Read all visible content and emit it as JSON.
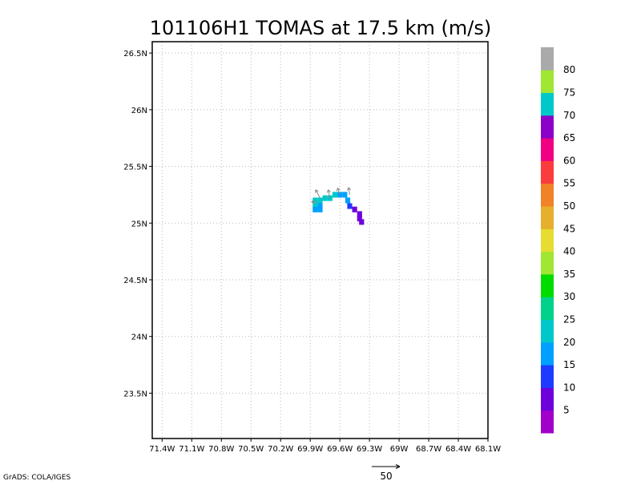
{
  "chart_data": {
    "type": "heatmap",
    "title": "101106H1 TOMAS at 17.5 km (m/s)",
    "x_ticks": [
      "71.4W",
      "71.1W",
      "70.8W",
      "70.5W",
      "70.2W",
      "69.9W",
      "69.6W",
      "69.3W",
      "69W",
      "68.7W",
      "68.4W",
      "68.1W"
    ],
    "y_ticks": [
      "26.5N",
      "26N",
      "25.5N",
      "25N",
      "24.5N",
      "24N",
      "23.5N"
    ],
    "x_range": [
      -71.5,
      -68.1
    ],
    "y_range": [
      23.1,
      26.6
    ],
    "grid": true,
    "cell_size_deg": 0.05,
    "cells": [
      {
        "lon": -69.85,
        "lat": 25.2,
        "value": 22
      },
      {
        "lon": -69.8,
        "lat": 25.2,
        "value": 22
      },
      {
        "lon": -69.75,
        "lat": 25.22,
        "value": 22
      },
      {
        "lon": -69.7,
        "lat": 25.22,
        "value": 20
      },
      {
        "lon": -69.65,
        "lat": 25.25,
        "value": 20
      },
      {
        "lon": -69.6,
        "lat": 25.25,
        "value": 18
      },
      {
        "lon": -69.55,
        "lat": 25.25,
        "value": 18
      },
      {
        "lon": -69.52,
        "lat": 25.2,
        "value": 17
      },
      {
        "lon": -69.85,
        "lat": 25.15,
        "value": 20
      },
      {
        "lon": -69.8,
        "lat": 25.15,
        "value": 19
      },
      {
        "lon": -69.85,
        "lat": 25.12,
        "value": 19
      },
      {
        "lon": -69.8,
        "lat": 25.12,
        "value": 19
      },
      {
        "lon": -69.5,
        "lat": 25.15,
        "value": 12
      },
      {
        "lon": -69.45,
        "lat": 25.12,
        "value": 8
      },
      {
        "lon": -69.4,
        "lat": 25.08,
        "value": 5
      },
      {
        "lon": -69.4,
        "lat": 25.04,
        "value": 5
      },
      {
        "lon": -69.38,
        "lat": 25.01,
        "value": 5
      }
    ],
    "vectors": [
      {
        "lon": -69.83,
        "lat": 25.18,
        "u": -10,
        "v": 2
      },
      {
        "lon": -69.8,
        "lat": 25.22,
        "u": -8,
        "v": 15
      },
      {
        "lon": -69.7,
        "lat": 25.22,
        "u": -3,
        "v": 15
      },
      {
        "lon": -69.6,
        "lat": 25.25,
        "u": -4,
        "v": 12
      },
      {
        "lon": -69.5,
        "lat": 25.25,
        "u": -2,
        "v": 13
      }
    ],
    "colorbar": {
      "labels": [
        "5",
        "10",
        "15",
        "20",
        "25",
        "30",
        "35",
        "40",
        "45",
        "50",
        "55",
        "60",
        "65",
        "70",
        "75",
        "80"
      ],
      "colors": [
        "#a000c8",
        "#6e00dc",
        "#1e3cff",
        "#00a0ff",
        "#00c8c8",
        "#00d28c",
        "#00dc00",
        "#a0e632",
        "#e6dc32",
        "#e6af2d",
        "#f08228",
        "#fa3c3c",
        "#f00082",
        "#8c00c8",
        "#00c8c8",
        "#a0e632",
        "#aaaaaa"
      ]
    },
    "reference_vector": {
      "label": "50"
    },
    "credit": "GrADS: COLA/IGES"
  }
}
